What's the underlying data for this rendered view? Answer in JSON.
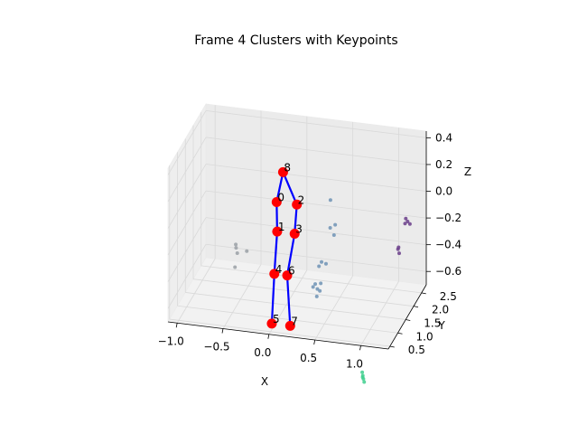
{
  "chart_data": {
    "type": "scatter",
    "title": "Frame 4 Clusters with Keypoints",
    "xlabel": "X",
    "ylabel": "Y",
    "zlabel": "Z",
    "xlim": [
      -1.1,
      1.3
    ],
    "ylim": [
      0.4,
      2.8
    ],
    "zlim": [
      -0.7,
      0.45
    ],
    "x_ticks": [
      -1.0,
      -0.5,
      0.0,
      0.5,
      1.0
    ],
    "x_tick_labels": [
      "−1.0",
      "−0.5",
      "0.0",
      "0.5",
      "1.0"
    ],
    "y_ticks": [
      0.5,
      1.0,
      1.5,
      2.0,
      2.5
    ],
    "y_tick_labels": [
      "0.5",
      "1.0",
      "1.5",
      "2.0",
      "2.5"
    ],
    "z_ticks": [
      -0.6,
      -0.4,
      -0.2,
      0.0,
      0.2,
      0.4
    ],
    "z_tick_labels": [
      "−0.6",
      "−0.4",
      "−0.2",
      "0.0",
      "0.2",
      "0.4"
    ],
    "grid": true,
    "clusters": [
      {
        "color": "#6a3d8a",
        "points": [
          [
            1.12,
            2.55,
            -0.17
          ],
          [
            1.14,
            2.55,
            -0.19
          ],
          [
            1.11,
            2.56,
            -0.21
          ],
          [
            1.17,
            2.52,
            -0.2
          ],
          [
            1.05,
            2.5,
            -0.38
          ],
          [
            1.04,
            2.52,
            -0.4
          ],
          [
            1.06,
            2.48,
            -0.42
          ]
        ]
      },
      {
        "color": "#6f93b5",
        "points": [
          [
            0.42,
            1.85,
            0.05
          ],
          [
            0.48,
            1.8,
            -0.12
          ],
          [
            0.4,
            1.95,
            -0.18
          ],
          [
            0.45,
            1.9,
            -0.22
          ],
          [
            0.34,
            1.75,
            -0.4
          ],
          [
            0.38,
            1.8,
            -0.42
          ],
          [
            0.3,
            1.82,
            -0.45
          ],
          [
            0.28,
            1.7,
            -0.56
          ],
          [
            0.3,
            1.72,
            -0.6
          ],
          [
            0.32,
            1.76,
            -0.62
          ],
          [
            0.26,
            1.68,
            -0.58
          ],
          [
            0.29,
            1.74,
            -0.66
          ],
          [
            0.34,
            1.7,
            -0.55
          ]
        ]
      },
      {
        "color": "#9aa0a6",
        "points": [
          [
            -0.62,
            1.9,
            -0.38
          ],
          [
            -0.62,
            1.92,
            -0.41
          ],
          [
            -0.6,
            1.88,
            -0.44
          ],
          [
            -0.5,
            1.9,
            -0.42
          ],
          [
            -0.62,
            1.85,
            -0.54
          ]
        ]
      },
      {
        "color": "#3fcf8e",
        "points": [
          [
            0.95,
            0.78,
            -0.98
          ],
          [
            0.96,
            0.76,
            -1.0
          ],
          [
            0.97,
            0.74,
            -1.02
          ],
          [
            0.98,
            0.73,
            -1.04
          ],
          [
            0.96,
            0.75,
            -1.01
          ]
        ]
      }
    ],
    "keypoints": {
      "color": "#ff0000",
      "line_color": "#0000ff",
      "labels": [
        "0",
        "1",
        "2",
        "3",
        "4",
        "5",
        "6",
        "7",
        "8"
      ],
      "points": [
        [
          -0.13,
          1.64,
          0.03
        ],
        [
          -0.1,
          1.5,
          -0.16
        ],
        [
          0.09,
          1.64,
          0.03
        ],
        [
          0.09,
          1.5,
          -0.16
        ],
        [
          -0.1,
          1.32,
          -0.44
        ],
        [
          -0.1,
          1.16,
          -0.78
        ],
        [
          0.04,
          1.32,
          -0.44
        ],
        [
          0.1,
          1.16,
          -0.78
        ],
        [
          -0.06,
          1.64,
          0.26
        ]
      ],
      "edges": [
        [
          8,
          0
        ],
        [
          8,
          2
        ],
        [
          0,
          1
        ],
        [
          2,
          3
        ],
        [
          1,
          4
        ],
        [
          3,
          6
        ],
        [
          4,
          5
        ],
        [
          6,
          7
        ]
      ]
    }
  }
}
